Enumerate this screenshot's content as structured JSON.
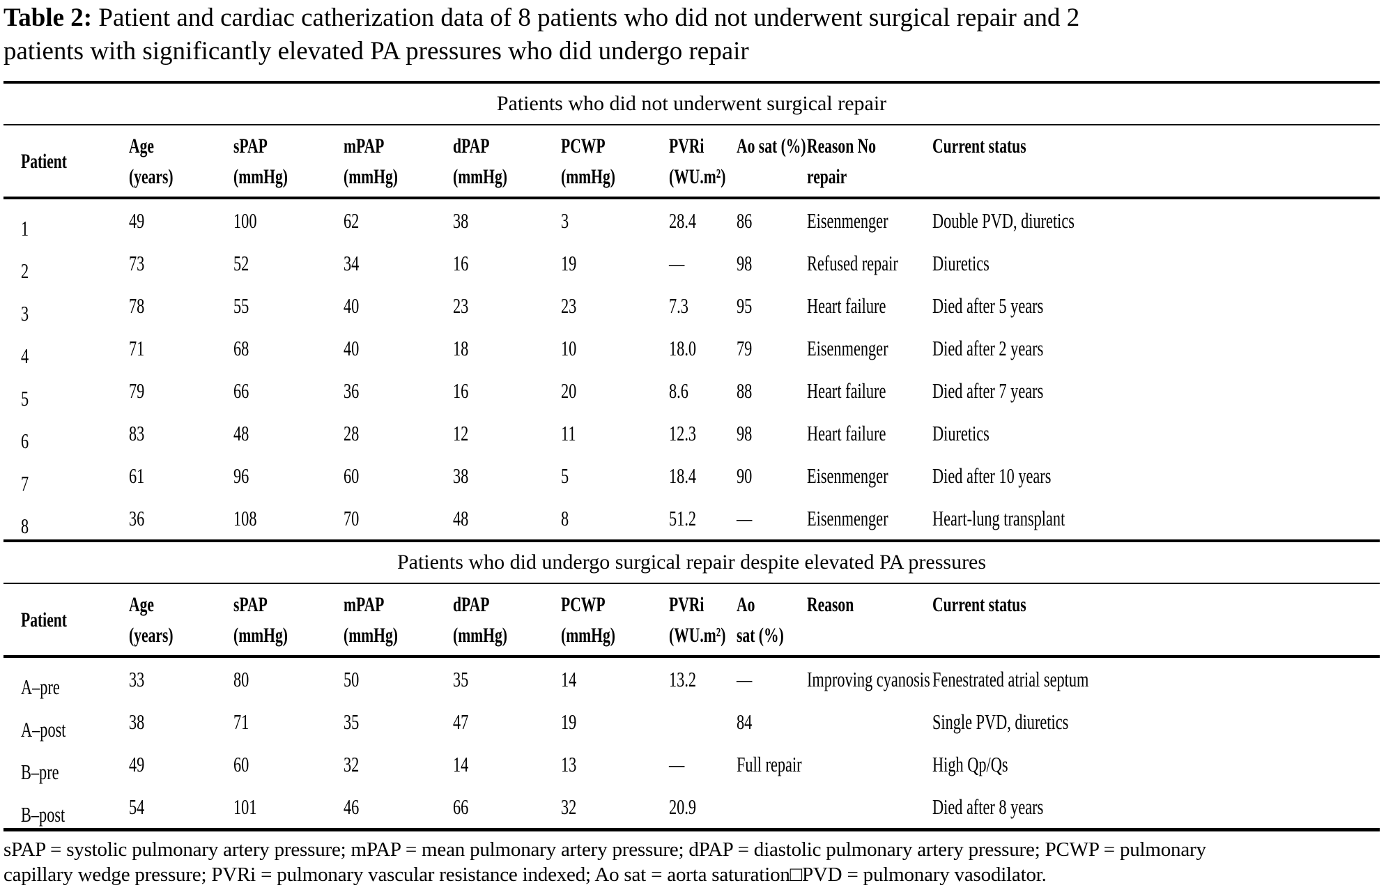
{
  "title": {
    "label": "Table 2:",
    "line1_rest": " Patient and cardiac catherization data of 8 patients who did not underwent surgical repair and 2",
    "line2": "patients with significantly elevated PA pressures who did undergo repair"
  },
  "sections": [
    {
      "header": "Patients who did not underwent surgical repair",
      "columns": [
        {
          "id": "patient",
          "lines": [
            "Patient"
          ]
        },
        {
          "id": "age",
          "lines": [
            "Age",
            "(years)"
          ]
        },
        {
          "id": "spap",
          "lines": [
            "sPAP",
            "(mmHg)"
          ]
        },
        {
          "id": "mpap",
          "lines": [
            "mPAP",
            "(mmHg)"
          ]
        },
        {
          "id": "dpap",
          "lines": [
            "dPAP",
            "(mmHg)"
          ]
        },
        {
          "id": "pcwp",
          "lines": [
            "PCWP",
            "(mmHg)"
          ]
        },
        {
          "id": "pvri",
          "lines": [
            "PVRi",
            "(WU.m²)"
          ]
        },
        {
          "id": "ao-sat",
          "lines": [
            "Ao sat (%)"
          ]
        },
        {
          "id": "reason",
          "lines": [
            "Reason No",
            "repair"
          ]
        },
        {
          "id": "current-status",
          "lines": [
            "Current status"
          ]
        }
      ],
      "rows": [
        {
          "cells": [
            "1",
            "49",
            "100",
            "62",
            "38",
            "3",
            "28.4",
            "86",
            "Eisenmenger",
            "Double PVD, diuretics"
          ]
        },
        {
          "cells": [
            "2",
            "73",
            "52",
            "34",
            "16",
            "19",
            "—",
            "98",
            "Refused repair",
            "Diuretics"
          ]
        },
        {
          "cells": [
            "3",
            "78",
            "55",
            "40",
            "23",
            "23",
            "7.3",
            "95",
            "Heart failure",
            "Died after 5 years"
          ]
        },
        {
          "cells": [
            "4",
            "71",
            "68",
            "40",
            "18",
            "10",
            "18.0",
            "79",
            "Eisenmenger",
            "Died after 2 years"
          ]
        },
        {
          "cells": [
            "5",
            "79",
            "66",
            "36",
            "16",
            "20",
            "8.6",
            "88",
            "Heart failure",
            "Died after 7 years"
          ]
        },
        {
          "cells": [
            "6",
            "83",
            "48",
            "28",
            "12",
            "11",
            "12.3",
            "98",
            "Heart failure",
            "Diuretics"
          ]
        },
        {
          "cells": [
            "7",
            "61",
            "96",
            "60",
            "38",
            "5",
            "18.4",
            "90",
            "Eisenmenger",
            "Died after 10 years"
          ]
        },
        {
          "cells": [
            "8",
            "36",
            "108",
            "70",
            "48",
            "8",
            "51.2",
            "—",
            "Eisenmenger",
            "Heart-lung transplant"
          ]
        }
      ]
    },
    {
      "header": "Patients who did undergo surgical repair despite elevated PA pressures",
      "columns": [
        {
          "id": "patient",
          "lines": [
            "Patient"
          ]
        },
        {
          "id": "age",
          "lines": [
            "Age",
            "(years)"
          ]
        },
        {
          "id": "spap",
          "lines": [
            "sPAP",
            "(mmHg)"
          ]
        },
        {
          "id": "mpap",
          "lines": [
            "mPAP",
            "(mmHg)"
          ]
        },
        {
          "id": "dpap",
          "lines": [
            "dPAP",
            "(mmHg)"
          ]
        },
        {
          "id": "pcwp",
          "lines": [
            "PCWP",
            "(mmHg)"
          ]
        },
        {
          "id": "pvri",
          "lines": [
            "PVRi",
            "(WU.m²)"
          ]
        },
        {
          "id": "ao-sat",
          "lines": [
            "Ao",
            "sat (%)"
          ]
        },
        {
          "id": "reason",
          "lines": [
            "Reason"
          ]
        },
        {
          "id": "current-status",
          "lines": [
            "Current status"
          ]
        }
      ],
      "rows": [
        {
          "cells": [
            "A–pre",
            "33",
            "80",
            "50",
            "35",
            "14",
            "13.2",
            "—",
            "Improving cyanosis",
            "Fenestrated atrial septum"
          ]
        },
        {
          "cells": [
            "A–post",
            "38",
            "71",
            "35",
            "47",
            "19",
            "",
            "84",
            "",
            "Single PVD, diuretics"
          ]
        },
        {
          "cells": [
            "B–pre",
            "49",
            "60",
            "32",
            "14",
            "13",
            "—",
            "Full repair",
            "",
            "High Qp/Qs"
          ]
        },
        {
          "cells": [
            "B–post",
            "54",
            "101",
            "46",
            "66",
            "32",
            "20.9",
            "",
            "",
            "Died after 8 years"
          ]
        }
      ]
    }
  ],
  "footnote": {
    "line1": "sPAP = systolic pulmonary artery pressure; mPAP = mean pulmonary artery pressure; dPAP = diastolic pulmonary artery pressure; PCWP = pulmonary",
    "line2": "capillary wedge pressure; PVRi = pulmonary vascular resistance indexed; Ao sat = aorta saturation□PVD = pulmonary vasodilator."
  }
}
